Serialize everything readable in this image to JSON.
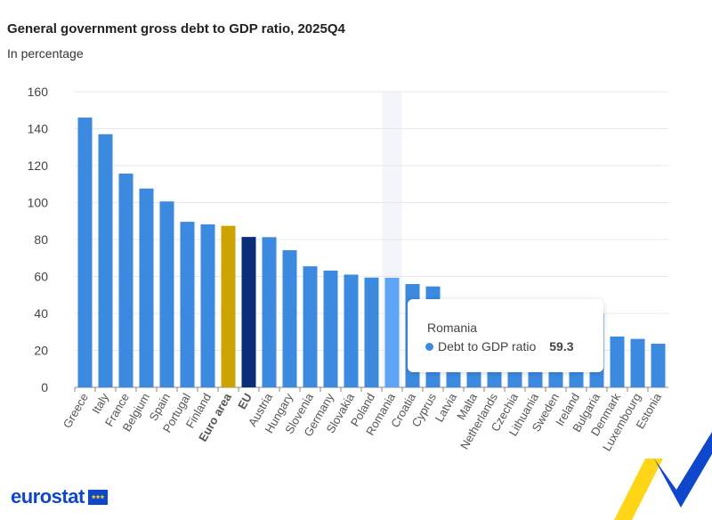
{
  "chart_data": {
    "type": "bar",
    "title": "General government gross debt to GDP ratio, 2025Q4",
    "subtitle": "In percentage",
    "categories": [
      "Greece",
      "Italy",
      "France",
      "Belgium",
      "Spain",
      "Portugal",
      "Finland",
      "Euro area",
      "EU",
      "Austria",
      "Hungary",
      "Slovenia",
      "Germany",
      "Slovakia",
      "Poland",
      "Romania",
      "Croatia",
      "Cyprus",
      "Latvia",
      "Malta",
      "Netherlands",
      "Czechia",
      "Lithuania",
      "Sweden",
      "Ireland",
      "Bulgaria",
      "Denmark",
      "Luxembourg",
      "Estonia"
    ],
    "series": [
      {
        "name": "Debt to GDP ratio",
        "values": [
          146,
          137,
          115.7,
          107.6,
          100.6,
          89.6,
          88.2,
          87.4,
          81.4,
          81.3,
          74.2,
          65.5,
          63.2,
          61,
          59.4,
          59.3,
          55.9,
          54.6,
          null,
          null,
          null,
          null,
          null,
          null,
          null,
          null,
          27.5,
          26.2,
          23.6
        ]
      }
    ],
    "highlighted_bold_categories": [
      "Euro area",
      "EU"
    ],
    "ylim": [
      0,
      160
    ],
    "yticks": [
      0,
      20,
      40,
      60,
      80,
      100,
      120,
      140,
      160
    ],
    "grid": true,
    "colors": {
      "default": "#3b8ae0",
      "euro_area": "#cca300",
      "eu": "#0b2e7a",
      "hovered": "#5ea6f5",
      "hover_band": "#f3f5fa"
    },
    "hovered_category": "Romania"
  },
  "tooltip": {
    "title": "Romania",
    "series": "Debt to GDP ratio",
    "value": "59.3"
  },
  "logo": {
    "text": "eurostat"
  }
}
